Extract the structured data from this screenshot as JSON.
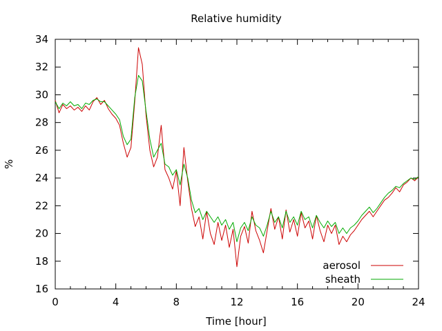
{
  "chart_data": {
    "type": "line",
    "title": "Relative humidity",
    "xlabel": "Time [hour]",
    "ylabel": "%",
    "xlim": [
      0,
      24
    ],
    "ylim": [
      16,
      34
    ],
    "xticks": [
      0,
      4,
      8,
      12,
      16,
      20,
      24
    ],
    "yticks": [
      16,
      18,
      20,
      22,
      24,
      26,
      28,
      30,
      32,
      34
    ],
    "legend_position": "bottom-right",
    "grid": false,
    "series": [
      {
        "name": "aerosol",
        "color": "#cc0000",
        "x": [
          0,
          0.25,
          0.5,
          0.75,
          1,
          1.25,
          1.5,
          1.75,
          2,
          2.25,
          2.5,
          2.75,
          3,
          3.25,
          3.5,
          3.75,
          4,
          4.25,
          4.5,
          4.75,
          5,
          5.25,
          5.5,
          5.75,
          6,
          6.25,
          6.5,
          6.75,
          7,
          7.25,
          7.5,
          7.75,
          8,
          8.25,
          8.5,
          8.75,
          9,
          9.25,
          9.5,
          9.75,
          10,
          10.25,
          10.5,
          10.75,
          11,
          11.25,
          11.5,
          11.75,
          12,
          12.25,
          12.5,
          12.75,
          13,
          13.25,
          13.5,
          13.75,
          14,
          14.25,
          14.5,
          14.75,
          15,
          15.25,
          15.5,
          15.75,
          16,
          16.25,
          16.5,
          16.75,
          17,
          17.25,
          17.5,
          17.75,
          18,
          18.25,
          18.5,
          18.75,
          19,
          19.25,
          19.5,
          19.75,
          20,
          20.25,
          20.5,
          20.75,
          21,
          21.25,
          21.5,
          21.75,
          22,
          22.25,
          22.5,
          22.75,
          23,
          23.25,
          23.5,
          23.75,
          24
        ],
        "y": [
          29.6,
          28.7,
          29.3,
          29.0,
          29.2,
          28.9,
          29.1,
          28.8,
          29.2,
          28.9,
          29.5,
          29.8,
          29.3,
          29.6,
          29.0,
          28.6,
          28.3,
          27.8,
          26.5,
          25.5,
          26.2,
          29.5,
          33.4,
          32.2,
          28.5,
          26.0,
          24.8,
          25.5,
          27.8,
          24.6,
          24.0,
          23.2,
          24.5,
          22.0,
          26.2,
          23.8,
          21.8,
          20.5,
          21.2,
          19.6,
          21.6,
          20.0,
          19.2,
          20.8,
          19.5,
          20.6,
          19.0,
          20.3,
          17.6,
          19.8,
          20.5,
          19.3,
          21.6,
          20.2,
          19.5,
          18.6,
          20.2,
          21.8,
          20.3,
          21.2,
          19.6,
          21.7,
          20.1,
          21.0,
          19.8,
          21.5,
          20.4,
          20.9,
          19.6,
          21.3,
          20.2,
          19.4,
          20.6,
          20.0,
          20.6,
          19.2,
          19.8,
          19.4,
          19.9,
          20.2,
          20.6,
          21.0,
          21.3,
          21.6,
          21.2,
          21.6,
          22.0,
          22.4,
          22.6,
          22.9,
          23.3,
          23.0,
          23.5,
          23.7,
          24.0,
          23.8,
          24.1
        ],
        "estimated": true
      },
      {
        "name": "sheath",
        "color": "#00aa00",
        "x": [
          0,
          0.25,
          0.5,
          0.75,
          1,
          1.25,
          1.5,
          1.75,
          2,
          2.25,
          2.5,
          2.75,
          3,
          3.25,
          3.5,
          3.75,
          4,
          4.25,
          4.5,
          4.75,
          5,
          5.25,
          5.5,
          5.75,
          6,
          6.25,
          6.5,
          6.75,
          7,
          7.25,
          7.5,
          7.75,
          8,
          8.25,
          8.5,
          8.75,
          9,
          9.25,
          9.5,
          9.75,
          10,
          10.25,
          10.5,
          10.75,
          11,
          11.25,
          11.5,
          11.75,
          12,
          12.25,
          12.5,
          12.75,
          13,
          13.25,
          13.5,
          13.75,
          14,
          14.25,
          14.5,
          14.75,
          15,
          15.25,
          15.5,
          15.75,
          16,
          16.25,
          16.5,
          16.75,
          17,
          17.25,
          17.5,
          17.75,
          18,
          18.25,
          18.5,
          18.75,
          19,
          19.25,
          19.5,
          19.75,
          20,
          20.25,
          20.5,
          20.75,
          21,
          21.25,
          21.5,
          21.75,
          22,
          22.25,
          22.5,
          22.75,
          23,
          23.25,
          23.5,
          23.75,
          24
        ],
        "y": [
          29.5,
          29.0,
          29.4,
          29.2,
          29.5,
          29.2,
          29.3,
          29.0,
          29.4,
          29.3,
          29.6,
          29.7,
          29.5,
          29.5,
          29.2,
          28.9,
          28.6,
          28.2,
          27.0,
          26.4,
          26.8,
          29.8,
          31.4,
          31.0,
          28.8,
          26.8,
          25.5,
          26.0,
          26.5,
          25.0,
          24.8,
          24.2,
          24.6,
          23.5,
          25.0,
          24.0,
          22.4,
          21.5,
          21.8,
          21.0,
          21.6,
          21.2,
          20.8,
          21.2,
          20.6,
          21.0,
          20.3,
          20.8,
          19.4,
          20.4,
          20.8,
          20.2,
          21.2,
          20.6,
          20.4,
          19.8,
          20.6,
          21.6,
          20.8,
          21.2,
          20.4,
          21.6,
          20.8,
          21.2,
          20.6,
          21.6,
          21.0,
          21.2,
          20.4,
          21.3,
          20.8,
          20.4,
          20.9,
          20.5,
          20.8,
          20.0,
          20.4,
          20.0,
          20.4,
          20.6,
          20.9,
          21.3,
          21.6,
          21.9,
          21.5,
          21.8,
          22.2,
          22.6,
          22.9,
          23.1,
          23.4,
          23.3,
          23.6,
          23.8,
          24.0,
          23.9,
          24.1
        ],
        "estimated": true
      }
    ]
  }
}
